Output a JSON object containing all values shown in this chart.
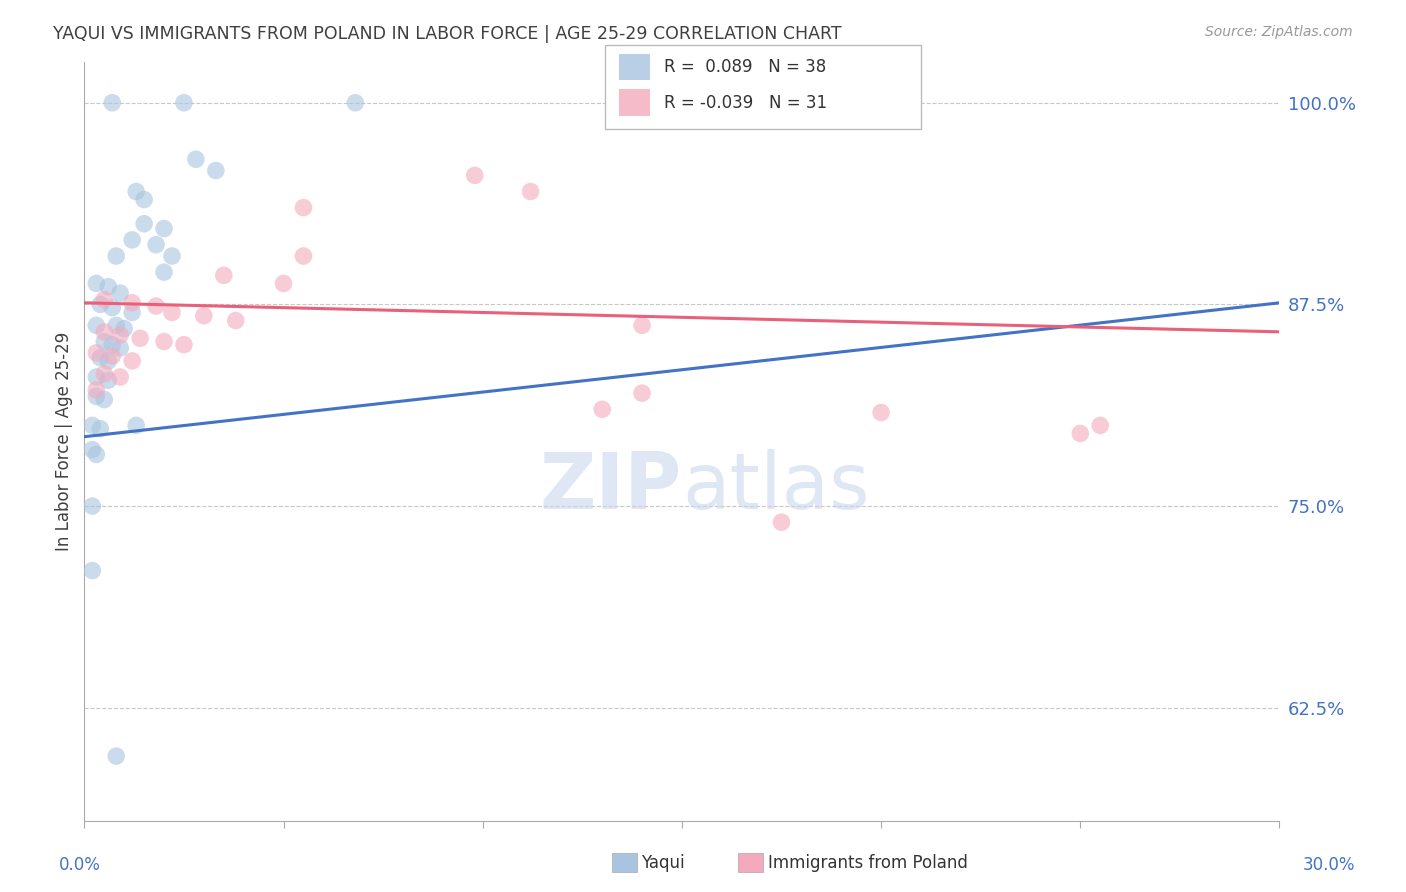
{
  "title": "YAQUI VS IMMIGRANTS FROM POLAND IN LABOR FORCE | AGE 25-29 CORRELATION CHART",
  "source_text": "Source: ZipAtlas.com",
  "ylabel": "In Labor Force | Age 25-29",
  "yaxis_values": [
    1.0,
    0.875,
    0.75,
    0.625
  ],
  "xlim": [
    0.0,
    0.3
  ],
  "ylim": [
    0.555,
    1.025
  ],
  "blue_color": "#A8C4E0",
  "pink_color": "#F4AABC",
  "blue_line_color": "#4472C4",
  "pink_line_color": "#E8607A",
  "title_color": "#404040",
  "axis_label_color": "#4472C4",
  "grid_color": "#C8C8C8",
  "watermark_color": "#C8D8EC",
  "blue_scatter": [
    [
      0.007,
      1.0
    ],
    [
      0.025,
      1.0
    ],
    [
      0.068,
      1.0
    ],
    [
      0.028,
      0.965
    ],
    [
      0.033,
      0.958
    ],
    [
      0.013,
      0.945
    ],
    [
      0.015,
      0.94
    ],
    [
      0.015,
      0.925
    ],
    [
      0.02,
      0.922
    ],
    [
      0.012,
      0.915
    ],
    [
      0.018,
      0.912
    ],
    [
      0.008,
      0.905
    ],
    [
      0.022,
      0.905
    ],
    [
      0.02,
      0.895
    ],
    [
      0.003,
      0.888
    ],
    [
      0.006,
      0.886
    ],
    [
      0.009,
      0.882
    ],
    [
      0.004,
      0.875
    ],
    [
      0.007,
      0.873
    ],
    [
      0.012,
      0.87
    ],
    [
      0.003,
      0.862
    ],
    [
      0.008,
      0.862
    ],
    [
      0.01,
      0.86
    ],
    [
      0.005,
      0.852
    ],
    [
      0.007,
      0.85
    ],
    [
      0.009,
      0.848
    ],
    [
      0.004,
      0.842
    ],
    [
      0.006,
      0.84
    ],
    [
      0.003,
      0.83
    ],
    [
      0.006,
      0.828
    ],
    [
      0.003,
      0.818
    ],
    [
      0.005,
      0.816
    ],
    [
      0.002,
      0.8
    ],
    [
      0.004,
      0.798
    ],
    [
      0.002,
      0.785
    ],
    [
      0.003,
      0.782
    ],
    [
      0.002,
      0.75
    ],
    [
      0.002,
      0.71
    ],
    [
      0.013,
      0.8
    ],
    [
      0.008,
      0.595
    ]
  ],
  "pink_scatter": [
    [
      0.195,
      1.0
    ],
    [
      0.098,
      0.955
    ],
    [
      0.112,
      0.945
    ],
    [
      0.055,
      0.935
    ],
    [
      0.055,
      0.905
    ],
    [
      0.035,
      0.893
    ],
    [
      0.05,
      0.888
    ],
    [
      0.005,
      0.878
    ],
    [
      0.012,
      0.876
    ],
    [
      0.018,
      0.874
    ],
    [
      0.022,
      0.87
    ],
    [
      0.03,
      0.868
    ],
    [
      0.038,
      0.865
    ],
    [
      0.005,
      0.858
    ],
    [
      0.009,
      0.856
    ],
    [
      0.014,
      0.854
    ],
    [
      0.02,
      0.852
    ],
    [
      0.025,
      0.85
    ],
    [
      0.003,
      0.845
    ],
    [
      0.007,
      0.843
    ],
    [
      0.012,
      0.84
    ],
    [
      0.005,
      0.832
    ],
    [
      0.009,
      0.83
    ],
    [
      0.003,
      0.822
    ],
    [
      0.14,
      0.862
    ],
    [
      0.14,
      0.82
    ],
    [
      0.2,
      0.808
    ],
    [
      0.25,
      0.795
    ],
    [
      0.175,
      0.74
    ],
    [
      0.13,
      0.81
    ],
    [
      0.255,
      0.8
    ]
  ],
  "blue_trendline": [
    [
      0.0,
      0.793
    ],
    [
      0.3,
      0.876
    ]
  ],
  "pink_trendline": [
    [
      0.0,
      0.876
    ],
    [
      0.3,
      0.858
    ]
  ]
}
